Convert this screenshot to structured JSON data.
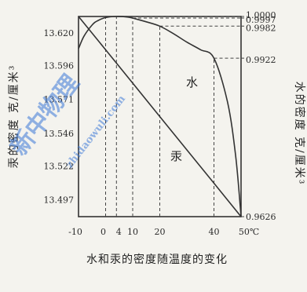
{
  "chart_data": {
    "type": "line",
    "title": "水和汞的密度随温度的变化",
    "xlabel": "",
    "x_unit": "℃",
    "xlim": [
      -10,
      50
    ],
    "x_ticks": [
      -10,
      0,
      4,
      10,
      20,
      40,
      50
    ],
    "x_tick_labels": [
      "-10",
      "0",
      "4",
      "10",
      "20",
      "40",
      "50℃"
    ],
    "left_axis": {
      "label": "汞的密度  克/厘米³",
      "ylim": [
        13.4846,
        13.632
      ],
      "ticks": [
        13.62,
        13.596,
        13.571,
        13.546,
        13.522,
        13.497
      ],
      "tick_labels": [
        "13.620",
        "13.596",
        "13.571",
        "13.546",
        "13.522",
        "13.497"
      ]
    },
    "right_axis": {
      "label": "水的密度  克/厘米³",
      "ylim": [
        0.9626,
        1.0
      ],
      "ticks": [
        1.0,
        0.9997,
        0.9982,
        0.9922,
        0.9626
      ],
      "tick_labels": [
        "1.0000",
        "0.9997",
        "0.9982",
        "0.9922",
        "0.9626"
      ]
    },
    "series": [
      {
        "name": "汞",
        "axis": "left",
        "x": [
          -10,
          0,
          10,
          20,
          40,
          50
        ],
        "y": [
          13.632,
          13.6075,
          13.5829,
          13.5583,
          13.5092,
          13.4846
        ]
      },
      {
        "name": "水",
        "axis": "right",
        "x": [
          -10,
          -8,
          -5,
          -3,
          0,
          4,
          8,
          10,
          15,
          20,
          25,
          30,
          35,
          40,
          45,
          48,
          50
        ],
        "y": [
          0.994,
          0.9963,
          0.9984,
          0.9992,
          0.9998,
          1.0,
          0.9999,
          0.9997,
          0.999,
          0.9982,
          0.9968,
          0.9952,
          0.9938,
          0.9922,
          0.984,
          0.974,
          0.9626
        ]
      }
    ],
    "grid": false,
    "legend": "none"
  },
  "watermark": {
    "main": "新中物理",
    "sub": "zhidaowuli.com"
  }
}
